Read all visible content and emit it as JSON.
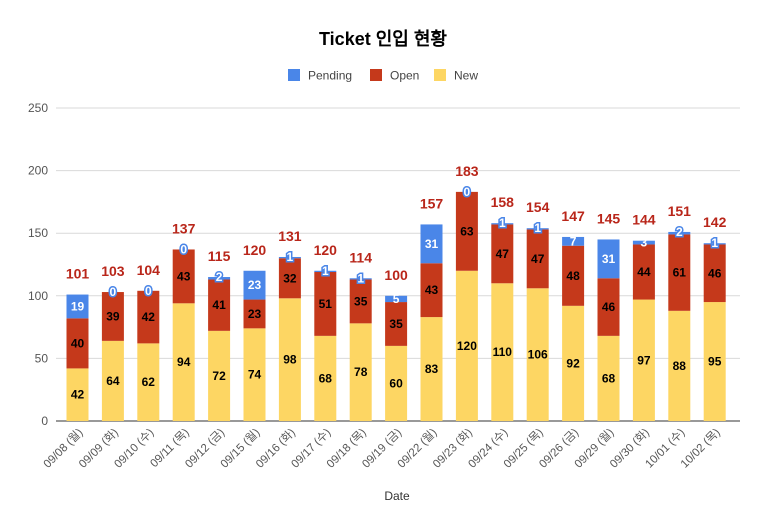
{
  "chart_data": {
    "type": "bar",
    "stacked": true,
    "title": "Ticket 인입 현황",
    "xlabel": "Date",
    "ylabel": "",
    "ylim": [
      0,
      250
    ],
    "yticks": [
      0,
      50,
      100,
      150,
      200,
      250
    ],
    "grid": true,
    "legend_position": "top",
    "categories": [
      "09/08 (월)",
      "09/09 (화)",
      "09/10 (수)",
      "09/11 (목)",
      "09/12 (금)",
      "09/15 (월)",
      "09/16 (화)",
      "09/17 (수)",
      "09/18 (목)",
      "09/19 (금)",
      "09/22 (월)",
      "09/23 (화)",
      "09/24 (수)",
      "09/25 (목)",
      "09/26 (금)",
      "09/29 (월)",
      "09/30 (화)",
      "10/01 (수)",
      "10/02 (목)"
    ],
    "series": [
      {
        "name": "New",
        "color": "#FDD663",
        "values": [
          42,
          64,
          62,
          94,
          72,
          74,
          98,
          68,
          78,
          60,
          83,
          120,
          110,
          106,
          92,
          68,
          97,
          88,
          95
        ]
      },
      {
        "name": "Open",
        "color": "#C5391B",
        "values": [
          40,
          39,
          42,
          43,
          41,
          23,
          32,
          51,
          35,
          35,
          43,
          63,
          47,
          47,
          48,
          46,
          44,
          61,
          46
        ]
      },
      {
        "name": "Pending",
        "color": "#4A86E8",
        "values": [
          19,
          0,
          0,
          0,
          2,
          23,
          1,
          1,
          1,
          5,
          31,
          0,
          1,
          1,
          7,
          31,
          3,
          2,
          1
        ]
      }
    ],
    "totals": [
      101,
      103,
      104,
      137,
      115,
      120,
      131,
      120,
      114,
      100,
      157,
      183,
      158,
      154,
      147,
      145,
      144,
      151,
      142
    ],
    "legend": [
      "Pending",
      "Open",
      "New"
    ]
  }
}
